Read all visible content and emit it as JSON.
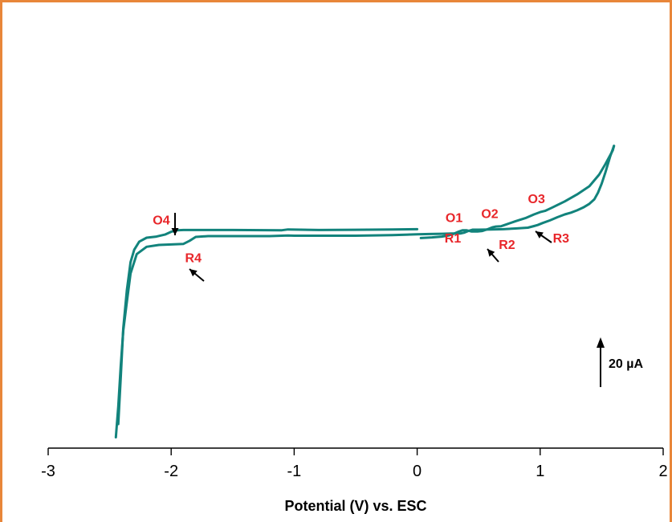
{
  "chart_data": {
    "type": "line",
    "title": "",
    "xlabel": "Potential (V) vs. ESC",
    "ylabel": "",
    "xlim": [
      -3,
      2
    ],
    "xticks": [
      -3,
      -2,
      -1,
      0,
      1,
      2
    ],
    "xtick_labels": [
      "-3",
      "-2",
      "-1",
      "0",
      "1",
      "2"
    ],
    "y_units": "µA",
    "grid": false,
    "legend": "none",
    "series": [
      {
        "color": "#12837c",
        "x": [
          0.03,
          0.12,
          0.2,
          0.26,
          0.3,
          0.34,
          0.37,
          0.4,
          0.44,
          0.49,
          0.53,
          0.57,
          0.61,
          0.64,
          0.68,
          0.73,
          0.8,
          0.88,
          0.95,
          1.0,
          1.04,
          1.1,
          1.2,
          1.3,
          1.4,
          1.48,
          1.53,
          1.57,
          1.59,
          1.6
        ],
        "y": [
          -0.3,
          0.3,
          1.0,
          2.0,
          3.5,
          5.3,
          6.4,
          6.4,
          5.4,
          5.4,
          5.8,
          7.2,
          8.9,
          9.6,
          9.8,
          11.6,
          14.2,
          16.8,
          20.0,
          22.0,
          23.0,
          26.0,
          31.2,
          37.2,
          44.2,
          54.2,
          63.2,
          71.0,
          75.0,
          78.8
        ]
      },
      {
        "color": "#12837c",
        "x": [
          1.6,
          1.57,
          1.53,
          1.5,
          1.47,
          1.44,
          1.4,
          1.35,
          1.3,
          1.25,
          1.2,
          1.14,
          1.08,
          1.02,
          0.98,
          0.95,
          0.9,
          0.8,
          0.7,
          0.6,
          0.5,
          0.45,
          0.42,
          0.38,
          0.35,
          0.32,
          0.28,
          0.2,
          0.1,
          0,
          -0.2,
          -0.5,
          -0.8,
          -1.0,
          -1.05,
          -1.2,
          -1.5,
          -1.7,
          -1.8,
          -1.85,
          -1.9,
          -2.0,
          -2.1,
          -2.2,
          -2.28,
          -2.33,
          -2.36,
          -2.39,
          -2.41,
          -2.43,
          -2.45
        ],
        "y": [
          78.8,
          70.0,
          56.0,
          46.4,
          38.6,
          32.9,
          29.1,
          25.9,
          23.5,
          21.5,
          20.0,
          17.6,
          14.9,
          12.6,
          10.9,
          10.0,
          8.6,
          7.9,
          7.3,
          7.1,
          6.9,
          6.9,
          5.9,
          4.3,
          3.6,
          3.6,
          3.6,
          3.4,
          3.2,
          2.9,
          2.2,
          1.7,
          1.7,
          1.7,
          1.9,
          1.4,
          1.4,
          1.4,
          0.7,
          -2.6,
          -5.3,
          -5.8,
          -6.2,
          -7.8,
          -14.1,
          -30.7,
          -55.2,
          -80.0,
          -110.0,
          -145.0,
          -171.4
        ]
      },
      {
        "color": "#12837c",
        "x": [
          -2.43,
          -2.41,
          -2.39,
          -2.36,
          -2.33,
          -2.3,
          -2.26,
          -2.2,
          -2.12,
          -2.05,
          -2.0,
          -1.95,
          -1.9,
          -1.5,
          -1.1,
          -1.05,
          -0.8,
          -0.5,
          -0.2,
          0.0
        ],
        "y": [
          -160.0,
          -120.0,
          -78.0,
          -45.2,
          -21.0,
          -10.3,
          -3.4,
          0.0,
          1.0,
          2.7,
          5.1,
          6.4,
          6.6,
          6.6,
          6.4,
          7.1,
          6.6,
          6.8,
          7.1,
          7.3
        ]
      }
    ],
    "annotations": [
      {
        "text": "O1",
        "x": 0.3,
        "y": 13.5,
        "color": "#e8262a"
      },
      {
        "text": "O2",
        "x": 0.59,
        "y": 17.0,
        "color": "#e8262a"
      },
      {
        "text": "O3",
        "x": 0.97,
        "y": 29.5,
        "color": "#e8262a"
      },
      {
        "text": "O4",
        "x": -2.08,
        "y": 11.5,
        "color": "#e8262a"
      },
      {
        "text": "R1",
        "x": 0.29,
        "y": -4.0,
        "color": "#e8262a"
      },
      {
        "text": "R2",
        "x": 0.73,
        "y": -9.5,
        "color": "#e8262a"
      },
      {
        "text": "R3",
        "x": 1.17,
        "y": -4.0,
        "color": "#e8262a"
      },
      {
        "text": "R4",
        "x": -1.82,
        "y": -21.0,
        "color": "#e8262a"
      }
    ],
    "scale_bar": {
      "label": "20 µA",
      "value": 20
    }
  },
  "colors": {
    "frame": "#e8863a",
    "curve": "#12837c",
    "labels": "#e8262a"
  }
}
